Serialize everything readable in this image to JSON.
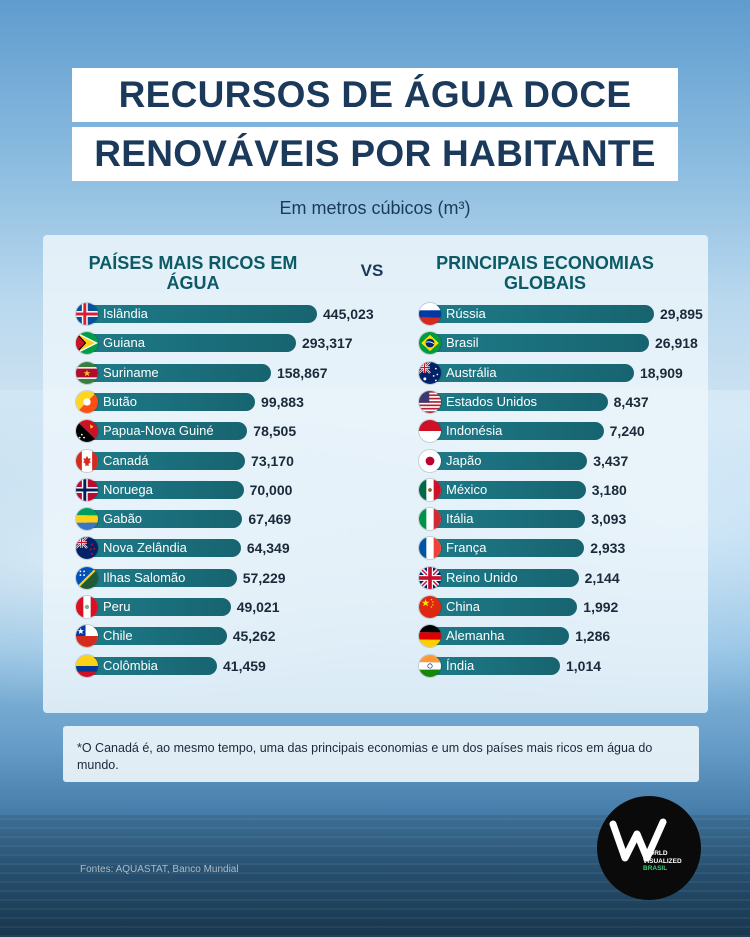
{
  "title_line1": "RECURSOS DE ÁGUA DOCE",
  "title_line2": "RENOVÁVEIS POR HABITANTE",
  "subtitle": "Em metros cúbicos (m³)",
  "vs_label": "VS",
  "note": "*O Canadá é, ao mesmo tempo, uma das principais economias e um dos países mais ricos em água do mundo.",
  "sources": "Fontes: AQUASTAT, Banco Mundial",
  "logo": {
    "line1": "WORLD",
    "line2": "VISUALIZED",
    "line3": "BRASIL"
  },
  "colors": {
    "title": "#1b3a5b",
    "column_title": "#0c5a66",
    "bar": "#1e7a88",
    "logo_accent": "#3ecb7a"
  },
  "chart_data": [
    {
      "type": "bar",
      "orientation": "horizontal",
      "title": "PAÍSES MAIS RICOS EM ÁGUA",
      "categories": [
        "Islândia",
        "Guiana",
        "Suriname",
        "Butão",
        "Papua-Nova Guiné",
        "Canadá",
        "Noruega",
        "Gabão",
        "Nova Zelândia",
        "Ilhas Salomão",
        "Peru",
        "Chile",
        "Colômbia"
      ],
      "values": [
        445023,
        293317,
        158867,
        99883,
        78505,
        73170,
        70000,
        67469,
        64349,
        57229,
        49021,
        45262,
        41459
      ],
      "value_labels": [
        "445,023",
        "293,317",
        "158,867",
        "99,883",
        "78,505",
        "73,170",
        "70,000",
        "67,469",
        "64,349",
        "57,229",
        "49,021",
        "45,262",
        "41,459"
      ],
      "flags": [
        "iceland",
        "guyana",
        "suriname",
        "bhutan",
        "papua-new-guinea",
        "canada",
        "norway",
        "gabon",
        "new-zealand",
        "solomon-islands",
        "peru",
        "chile",
        "colombia"
      ]
    },
    {
      "type": "bar",
      "orientation": "horizontal",
      "title": "PRINCIPAIS ECONOMIAS GLOBAIS",
      "categories": [
        "Rússia",
        "Brasil",
        "Austrália",
        "Estados Unidos",
        "Indonésia",
        "Japão",
        "México",
        "Itália",
        "França",
        "Reino Unido",
        "China",
        "Alemanha",
        "Índia"
      ],
      "values": [
        29895,
        26918,
        18909,
        8437,
        7240,
        3437,
        3180,
        3093,
        2933,
        2144,
        1992,
        1286,
        1014
      ],
      "value_labels": [
        "29,895",
        "26,918",
        "18,909",
        "8,437",
        "7,240",
        "3,437",
        "3,180",
        "3,093",
        "2,933",
        "2,144",
        "1,992",
        "1,286",
        "1,014"
      ],
      "flags": [
        "russia",
        "brazil",
        "australia",
        "united-states",
        "indonesia",
        "japan",
        "mexico",
        "italy",
        "france",
        "united-kingdom",
        "china",
        "germany",
        "india"
      ]
    }
  ]
}
